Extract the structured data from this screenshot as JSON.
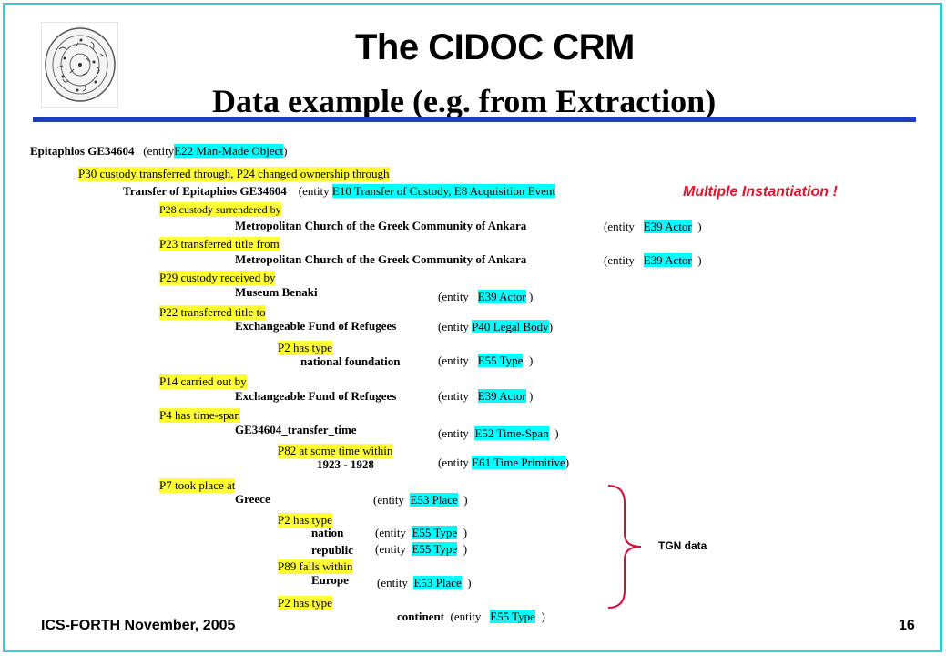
{
  "title": "The CIDOC CRM",
  "subtitle": "Data example (e.g. from Extraction)",
  "note": "Multiple Instantiation !",
  "tgn_label": "TGN data",
  "footer": "ICS-FORTH November, 2005",
  "page_number": "16",
  "entity_word": "(entity",
  "close_paren": ")",
  "lines": {
    "epitaphios": "Epitaphios GE34604",
    "epitaphios_class": "E22 Man-Made Object",
    "p30": "P30 custody transferred through, P24 changed ownership through",
    "transfer": "Transfer of Epitaphios GE34604",
    "transfer_class": "E10 Transfer of Custody,  E8 Acquisition Event",
    "p28": "P28 custody surrendered by",
    "metro1": "Metropolitan  Church of the Greek Community of Ankara",
    "p23": "P23 transferred title from",
    "metro2": "Metropolitan  Church of the Greek Community of Ankara",
    "e39": "E39 Actor",
    "p29": "P29 custody received by",
    "benaki": "Museum Benaki",
    "p22": "P22 transferred title to",
    "fund1": "Exchangeable Fund of Refugees",
    "p40": "P40 Legal Body",
    "p2": "P2 has type",
    "national": "national foundation",
    "e55": "E55 Type",
    "p14": "P14 carried out by",
    "fund2": "Exchangeable Fund of Refugees",
    "p4": "P4 has time-span",
    "timespan": "GE34604_transfer_time",
    "e52": "E52 Time-Span",
    "p82": "P82 at some time  within",
    "years": "1923 - 1928",
    "e61": "E61 Time Primitive",
    "p7": "P7 took place at",
    "greece": "Greece",
    "e53": "E53 Place",
    "nation": "nation",
    "republic": "republic",
    "p89": "P89 falls within",
    "europe": "Europe",
    "continent": "continent"
  },
  "colors": {
    "frame": "#2fd0c8",
    "rule": "#1f3dbf",
    "property_highlight": "#ffff33",
    "class_highlight": "#00ffff",
    "note": "#e8102a",
    "brace": "#d0103a"
  }
}
